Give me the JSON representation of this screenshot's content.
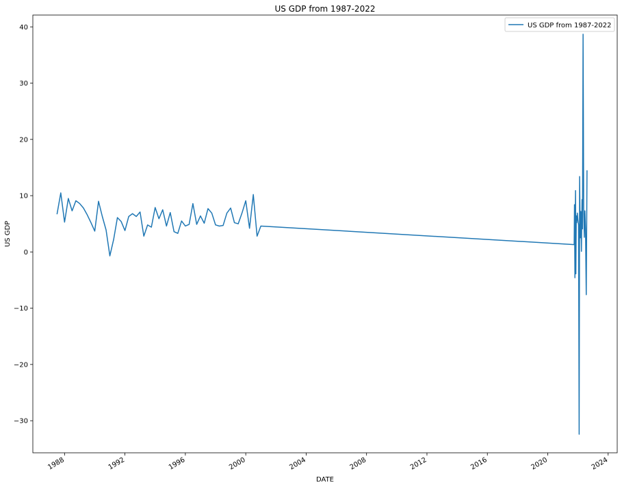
{
  "chart_data": {
    "type": "line",
    "title": "US GDP from 1987-2022",
    "xlabel": "DATE",
    "ylabel": "US GDP",
    "xlim": [
      1985.9,
      2024.6
    ],
    "ylim": [
      -35.7,
      42.1
    ],
    "x_ticks": [
      1988,
      1992,
      1996,
      2000,
      2004,
      2008,
      2012,
      2016,
      2020,
      2024
    ],
    "y_ticks": [
      -30,
      -20,
      -10,
      0,
      10,
      20,
      30,
      40
    ],
    "grid": false,
    "legend": {
      "position": "top-right",
      "entries": [
        "US GDP from 1987-2022"
      ]
    },
    "series": [
      {
        "name": "US GDP from 1987-2022",
        "color": "#1f77b4",
        "points": [
          [
            1987.5,
            6.7
          ],
          [
            1987.75,
            10.5
          ],
          [
            1988.0,
            5.3
          ],
          [
            1988.25,
            9.5
          ],
          [
            1988.5,
            7.3
          ],
          [
            1988.75,
            9.1
          ],
          [
            1989.0,
            8.6
          ],
          [
            1989.25,
            7.8
          ],
          [
            1989.5,
            6.6
          ],
          [
            1989.75,
            5.2
          ],
          [
            1990.0,
            3.7
          ],
          [
            1990.25,
            9.0
          ],
          [
            1990.5,
            6.3
          ],
          [
            1990.75,
            3.9
          ],
          [
            1991.0,
            -0.7
          ],
          [
            1991.25,
            2.2
          ],
          [
            1991.5,
            6.1
          ],
          [
            1991.75,
            5.4
          ],
          [
            1992.0,
            3.8
          ],
          [
            1992.25,
            6.3
          ],
          [
            1992.5,
            6.8
          ],
          [
            1992.75,
            6.3
          ],
          [
            1993.0,
            7.1
          ],
          [
            1993.25,
            2.8
          ],
          [
            1993.5,
            4.8
          ],
          [
            1993.75,
            4.4
          ],
          [
            1994.0,
            7.9
          ],
          [
            1994.25,
            5.9
          ],
          [
            1994.5,
            7.5
          ],
          [
            1994.75,
            4.6
          ],
          [
            1995.0,
            7.0
          ],
          [
            1995.25,
            3.6
          ],
          [
            1995.5,
            3.3
          ],
          [
            1995.75,
            5.5
          ],
          [
            1996.0,
            4.6
          ],
          [
            1996.25,
            4.9
          ],
          [
            1996.5,
            8.6
          ],
          [
            1996.75,
            4.9
          ],
          [
            1997.0,
            6.4
          ],
          [
            1997.25,
            5.1
          ],
          [
            1997.5,
            7.7
          ],
          [
            1997.75,
            6.9
          ],
          [
            1998.0,
            4.8
          ],
          [
            1998.25,
            4.6
          ],
          [
            1998.5,
            4.7
          ],
          [
            1998.75,
            6.9
          ],
          [
            1999.0,
            7.8
          ],
          [
            1999.25,
            5.2
          ],
          [
            1999.5,
            5.0
          ],
          [
            1999.75,
            6.9
          ],
          [
            2000.0,
            9.1
          ],
          [
            2000.25,
            4.2
          ],
          [
            2000.5,
            10.2
          ],
          [
            2000.75,
            2.8
          ],
          [
            2001.0,
            4.6
          ],
          [
            2021.75,
            1.3
          ],
          [
            2021.77,
            8.4
          ],
          [
            2021.8,
            -4.6
          ],
          [
            2021.82,
            6.1
          ],
          [
            2021.84,
            10.9
          ],
          [
            2021.86,
            -3.9
          ],
          [
            2021.89,
            6.4
          ],
          [
            2021.92,
            5.2
          ],
          [
            2021.96,
            6.9
          ],
          [
            2022.0,
            5.6
          ],
          [
            2022.04,
            4.8
          ],
          [
            2022.08,
            -32.4
          ],
          [
            2022.11,
            13.4
          ],
          [
            2022.15,
            2.5
          ],
          [
            2022.19,
            7.2
          ],
          [
            2022.23,
            0.1
          ],
          [
            2022.27,
            9.3
          ],
          [
            2022.3,
            4.1
          ],
          [
            2022.34,
            38.7
          ],
          [
            2022.38,
            7.8
          ],
          [
            2022.42,
            2.6
          ],
          [
            2022.46,
            7.3
          ],
          [
            2022.5,
            4.0
          ],
          [
            2022.55,
            -7.6
          ],
          [
            2022.6,
            14.5
          ]
        ]
      }
    ]
  }
}
